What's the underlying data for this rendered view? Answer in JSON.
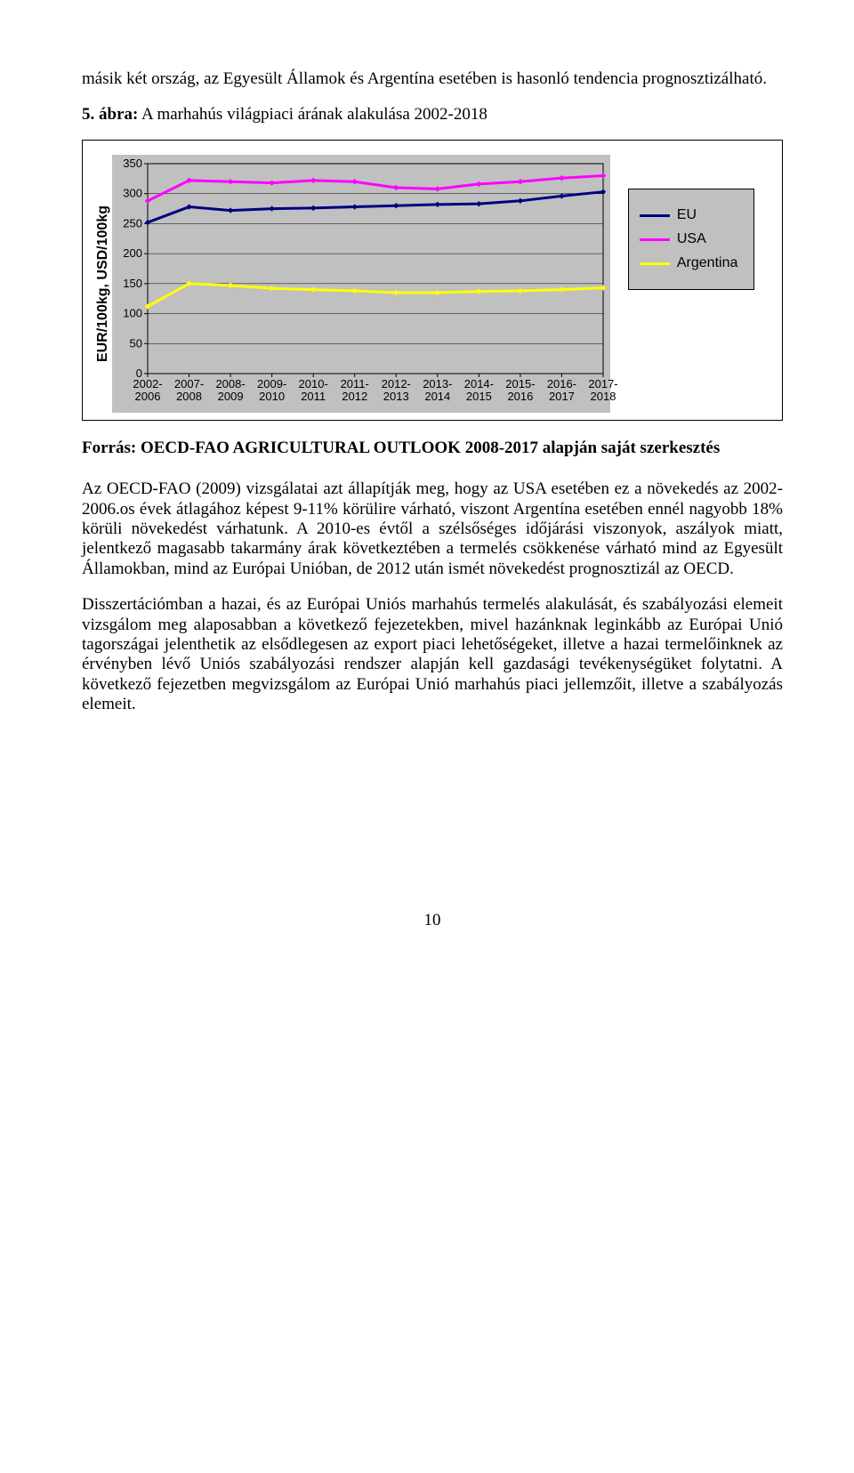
{
  "intro_para": "másik két ország, az Egyesült Államok és Argentína esetében is hasonló tendencia prognosztizálható.",
  "caption_num": "5. ábra:",
  "caption_text": " A marhahús világpiaci árának alakulása 2002-2018",
  "chart": {
    "type": "line",
    "y_axis_title": "EUR/100kg, USD/100kg",
    "background_color": "#c0c0c0",
    "plot_bg": "#c0c0c0",
    "grid_color": "#000000",
    "ylim": [
      0,
      350
    ],
    "ytick_step": 50,
    "yticks": [
      0,
      50,
      100,
      150,
      200,
      250,
      300,
      350
    ],
    "categories": [
      "2002-\n2006",
      "2007-\n2008",
      "2008-\n2009",
      "2009-\n2010",
      "2010-\n2011",
      "2011-\n2012",
      "2012-\n2013",
      "2013-\n2014",
      "2014-\n2015",
      "2015-\n2016",
      "2016-\n2017",
      "2017-\n2018"
    ],
    "series": [
      {
        "name": "EU",
        "color": "#000080",
        "width": 3,
        "values": [
          252,
          278,
          272,
          275,
          276,
          278,
          280,
          282,
          283,
          288,
          296,
          303
        ]
      },
      {
        "name": "USA",
        "color": "#ff00ff",
        "width": 3,
        "values": [
          288,
          322,
          320,
          318,
          322,
          320,
          310,
          308,
          316,
          320,
          326,
          330
        ]
      },
      {
        "name": "Argentina",
        "color": "#ffff00",
        "width": 3,
        "values": [
          112,
          150,
          147,
          142,
          140,
          138,
          135,
          135,
          137,
          138,
          140,
          143
        ]
      }
    ],
    "marker_style": "diamond",
    "marker_size": 6,
    "legend_position": "right"
  },
  "legend": {
    "items": [
      {
        "label": "EU",
        "color": "#000080"
      },
      {
        "label": "USA",
        "color": "#ff00ff"
      },
      {
        "label": "Argentina",
        "color": "#ffff00"
      }
    ]
  },
  "source_text": "Forrás: OECD-FAO AGRICULTURAL OUTLOOK 2008-2017 alapján saját szerkesztés",
  "para2": "Az OECD-FAO (2009) vizsgálatai azt állapítják meg, hogy az USA esetében ez a növekedés az 2002-2006.os évek átlagához képest 9-11% körülire várható, viszont Argentína esetében ennél nagyobb 18% körüli növekedést várhatunk. A 2010-es évtől a szélsőséges időjárási viszonyok, aszályok miatt, jelentkező magasabb takarmány árak következtében a termelés csökkenése várható mind az Egyesült Államokban, mind az Európai Unióban, de 2012 után ismét növekedést prognosztizál az OECD.",
  "para3": "Disszertációmban a hazai, és az Európai Uniós marhahús termelés alakulását, és szabályozási elemeit vizsgálom meg alaposabban a következő fejezetekben, mivel hazánknak leginkább az Európai Unió tagországai jelenthetik az elsődlegesen az export piaci lehetőségeket, illetve a hazai termelőinknek az érvényben lévő Uniós szabályozási rendszer alapján kell gazdasági tevékenységüket folytatni.  A következő fejezetben megvizsgálom az Európai Unió marhahús piaci jellemzőit, illetve a szabályozás elemeit.",
  "page_number": "10"
}
